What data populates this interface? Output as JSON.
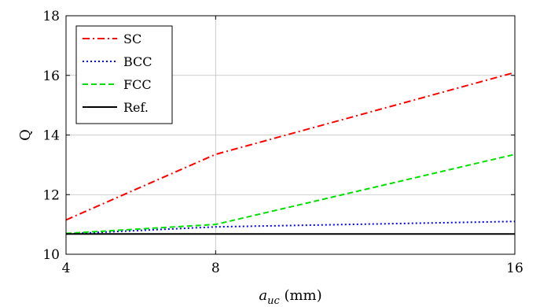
{
  "chart_data": {
    "type": "line",
    "x": [
      4,
      8,
      16
    ],
    "xlim": [
      4,
      16
    ],
    "ylim": [
      10,
      18
    ],
    "xticks": [
      4,
      8,
      16
    ],
    "yticks": [
      10,
      12,
      14,
      16,
      18
    ],
    "xlabel_main": "a",
    "xlabel_sub": "uc",
    "xlabel_unit": " (mm)",
    "ylabel": "Q",
    "grid": true,
    "legend_position": "top-left",
    "series": [
      {
        "name": "SC",
        "values": [
          11.15,
          13.35,
          16.1
        ],
        "color": "#ff0000",
        "dash": "dashdot"
      },
      {
        "name": "BCC",
        "values": [
          10.68,
          10.92,
          11.1
        ],
        "color": "#0000ff",
        "dash": "dotted"
      },
      {
        "name": "FCC",
        "values": [
          10.7,
          11.0,
          13.35
        ],
        "color": "#00e000",
        "dash": "dashed"
      },
      {
        "name": "Ref.",
        "values": [
          10.68,
          10.68,
          10.68
        ],
        "color": "#000000",
        "dash": "solid"
      }
    ]
  }
}
